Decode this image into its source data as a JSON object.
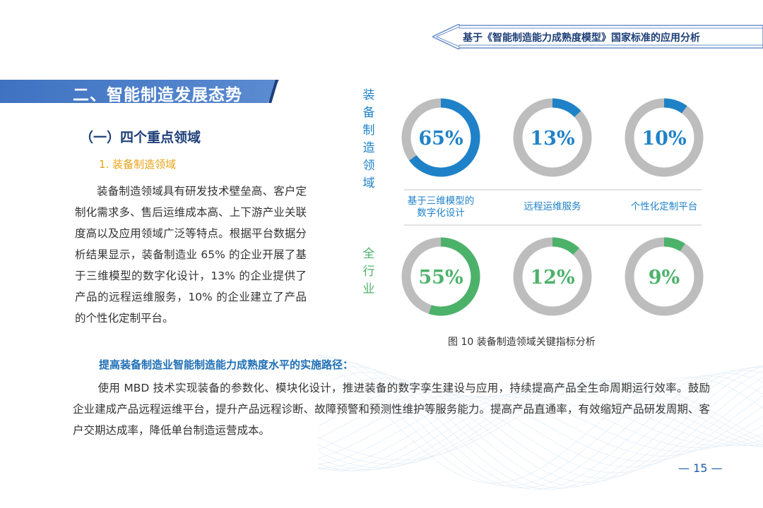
{
  "header": {
    "title": "基于《智能制造能力成熟度模型》国家标准的应用分析"
  },
  "section": {
    "title": "二、智能制造发展态势"
  },
  "subsection": {
    "title": "（一）四个重点领域"
  },
  "subsubsection": {
    "title": "1. 装备制造领域"
  },
  "intro_paragraph": "装备制造领域具有研发技术壁垒高、客户定制化需求多、售后运维成本高、上下游产业关联度高以及应用领域广泛等特点。根据平台数据分析结果显示，装备制造业 65% 的企业开展了基于三维模型的数字化设计，13% 的企业提供了产品的远程运维服务，10% 的企业建立了产品的个性化定制平台。",
  "chart_data": {
    "type": "pie",
    "variant": "donut",
    "categories": [
      "基于三维模型的数字化设计",
      "远程运维服务",
      "个性化定制平台"
    ],
    "series": [
      {
        "name": "装备制造领域",
        "values": [
          65,
          13,
          10
        ],
        "color": "#1f82c8"
      },
      {
        "name": "全行业",
        "values": [
          55,
          12,
          9
        ],
        "color": "#4cb26a"
      }
    ],
    "labels": [
      [
        "65%",
        "13%",
        "10%"
      ],
      [
        "55%",
        "12%",
        "9%"
      ]
    ],
    "remainder_color": "#bdbdbd",
    "unit": "%",
    "caption": "图 10  装备制造领域关键指标分析"
  },
  "category_labels": [
    [
      "基于三维模型的",
      "数字化设计"
    ],
    [
      "远程运维服务"
    ],
    [
      "个性化定制平台"
    ]
  ],
  "path_title": "提高装备制造业智能制造能力成熟度水平的实施路径：",
  "path_paragraph": "使用 MBD 技术实现装备的参数化、模块化设计，推进装备的数字孪生建设与应用，持续提高产品全生命周期运行效率。鼓励企业建成产品远程运维平台，提升产品远程诊断、故障预警和预测性维护等服务能力。提高产品直通率，有效缩短产品研发周期、客户交期达成率，降低单台制造运营成本。",
  "page_number": "15"
}
